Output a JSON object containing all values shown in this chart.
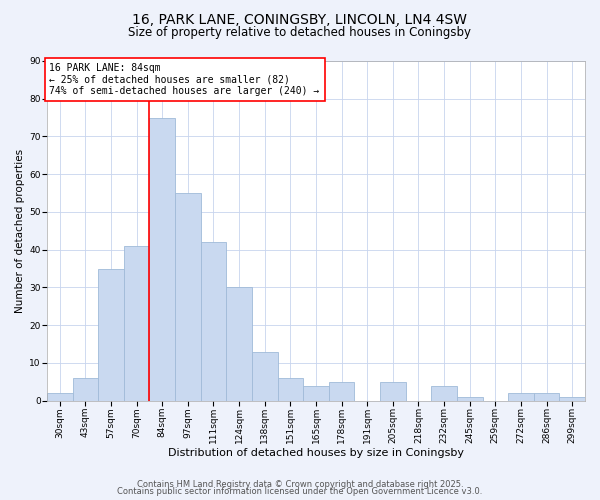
{
  "title": "16, PARK LANE, CONINGSBY, LINCOLN, LN4 4SW",
  "subtitle": "Size of property relative to detached houses in Coningsby",
  "xlabel": "Distribution of detached houses by size in Coningsby",
  "ylabel": "Number of detached properties",
  "bar_labels": [
    "30sqm",
    "43sqm",
    "57sqm",
    "70sqm",
    "84sqm",
    "97sqm",
    "111sqm",
    "124sqm",
    "138sqm",
    "151sqm",
    "165sqm",
    "178sqm",
    "191sqm",
    "205sqm",
    "218sqm",
    "232sqm",
    "245sqm",
    "259sqm",
    "272sqm",
    "286sqm",
    "299sqm"
  ],
  "bar_values": [
    2,
    6,
    35,
    41,
    75,
    55,
    42,
    30,
    13,
    6,
    4,
    5,
    0,
    5,
    0,
    4,
    1,
    0,
    2,
    2,
    1
  ],
  "bar_color": "#c9d9f0",
  "bar_edge_color": "#a0bbd8",
  "ylim": [
    0,
    90
  ],
  "yticks": [
    0,
    10,
    20,
    30,
    40,
    50,
    60,
    70,
    80,
    90
  ],
  "vline_x_index": 4,
  "vline_color": "red",
  "annotation_text": "16 PARK LANE: 84sqm\n← 25% of detached houses are smaller (82)\n74% of semi-detached houses are larger (240) →",
  "annotation_box_edge": "red",
  "footer_line1": "Contains HM Land Registry data © Crown copyright and database right 2025.",
  "footer_line2": "Contains public sector information licensed under the Open Government Licence v3.0.",
  "background_color": "#eef2fb",
  "plot_background_color": "#ffffff",
  "grid_color": "#c8d4ee",
  "title_fontsize": 10,
  "subtitle_fontsize": 8.5,
  "xlabel_fontsize": 8,
  "ylabel_fontsize": 7.5,
  "tick_fontsize": 6.5,
  "annotation_fontsize": 7,
  "footer_fontsize": 6
}
